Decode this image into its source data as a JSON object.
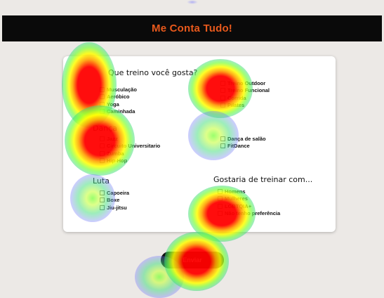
{
  "header": {
    "title": "Me Conta Tudo!"
  },
  "form": {
    "question_training": "Que treino você gosta?",
    "question_partner": "Gostaria de treinar com...",
    "groups": {
      "left_top": [
        "Musculação",
        "Aeróbico",
        "Yoga",
        "Caminhada"
      ],
      "dance_title": "Dança",
      "dance": [
        "Jazz",
        "Circuito Universitario",
        "Zumba",
        "Hip-Hop"
      ],
      "fight_title": "Luta",
      "fight": [
        "Capoeira",
        "Boxe",
        "Jiu-jitsu"
      ],
      "right_top": [
        "Treino Outdoor",
        "Treino Funcional",
        "Corrida",
        "Pilates"
      ],
      "right_mid": [
        "Dança de salão",
        "FitDance"
      ],
      "partner": [
        "Homens",
        "Mulheres",
        "LGBTQIA+",
        "Não tenho preferência"
      ]
    },
    "submit_label": "Enviar"
  },
  "colors": {
    "header_bg": "#0a0a0a",
    "accent": "#e8591c",
    "page_bg": "#ece9e6",
    "card_bg": "#ffffff"
  }
}
